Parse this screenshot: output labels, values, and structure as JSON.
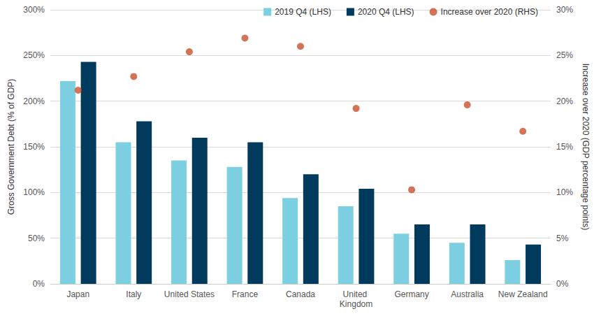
{
  "chart_data": {
    "type": "bar",
    "categories": [
      "Japan",
      "Italy",
      "United States",
      "France",
      "Canada",
      "United Kingdom",
      "Germany",
      "Australia",
      "New Zealand"
    ],
    "y_label": "Gross Government Debt (% of GDP)",
    "y2_label": "Increase over 2020 (GDP percentage points)",
    "series": [
      {
        "name": "2019 Q4 (LHS)",
        "type": "bar",
        "color": "#7dd0e1",
        "values": [
          222,
          155,
          135,
          128,
          94,
          85,
          55,
          45,
          26
        ]
      },
      {
        "name": "2020 Q4 (LHS)",
        "type": "bar",
        "color": "#003a5c",
        "values": [
          243,
          178,
          160,
          155,
          120,
          104,
          65,
          65,
          43
        ]
      },
      {
        "name": "Increase over 2020 (RHS)",
        "type": "scatter",
        "axis": "y2",
        "color": "#c9502b",
        "marker": "circle",
        "values": [
          21.2,
          22.7,
          25.4,
          26.9,
          26.0,
          19.2,
          10.3,
          19.6,
          16.7
        ]
      }
    ],
    "ylim": [
      0,
      300
    ],
    "yticks": [
      {
        "value": 0,
        "label": "0%"
      },
      {
        "value": 50,
        "label": "50%"
      },
      {
        "value": 100,
        "label": "100%"
      },
      {
        "value": 150,
        "label": "150%"
      },
      {
        "value": 200,
        "label": "200%"
      },
      {
        "value": 250,
        "label": "250%"
      },
      {
        "value": 300,
        "label": "300%"
      }
    ],
    "y2lim": [
      0,
      30
    ],
    "y2ticks": [
      {
        "value": 0,
        "label": "0%"
      },
      {
        "value": 5,
        "label": "5%"
      },
      {
        "value": 10,
        "label": "10%"
      },
      {
        "value": 15,
        "label": "15%"
      },
      {
        "value": 20,
        "label": "20%"
      },
      {
        "value": 25,
        "label": "25%"
      },
      {
        "value": 30,
        "label": "30%"
      }
    ],
    "grid": true,
    "legend": "top-right"
  }
}
